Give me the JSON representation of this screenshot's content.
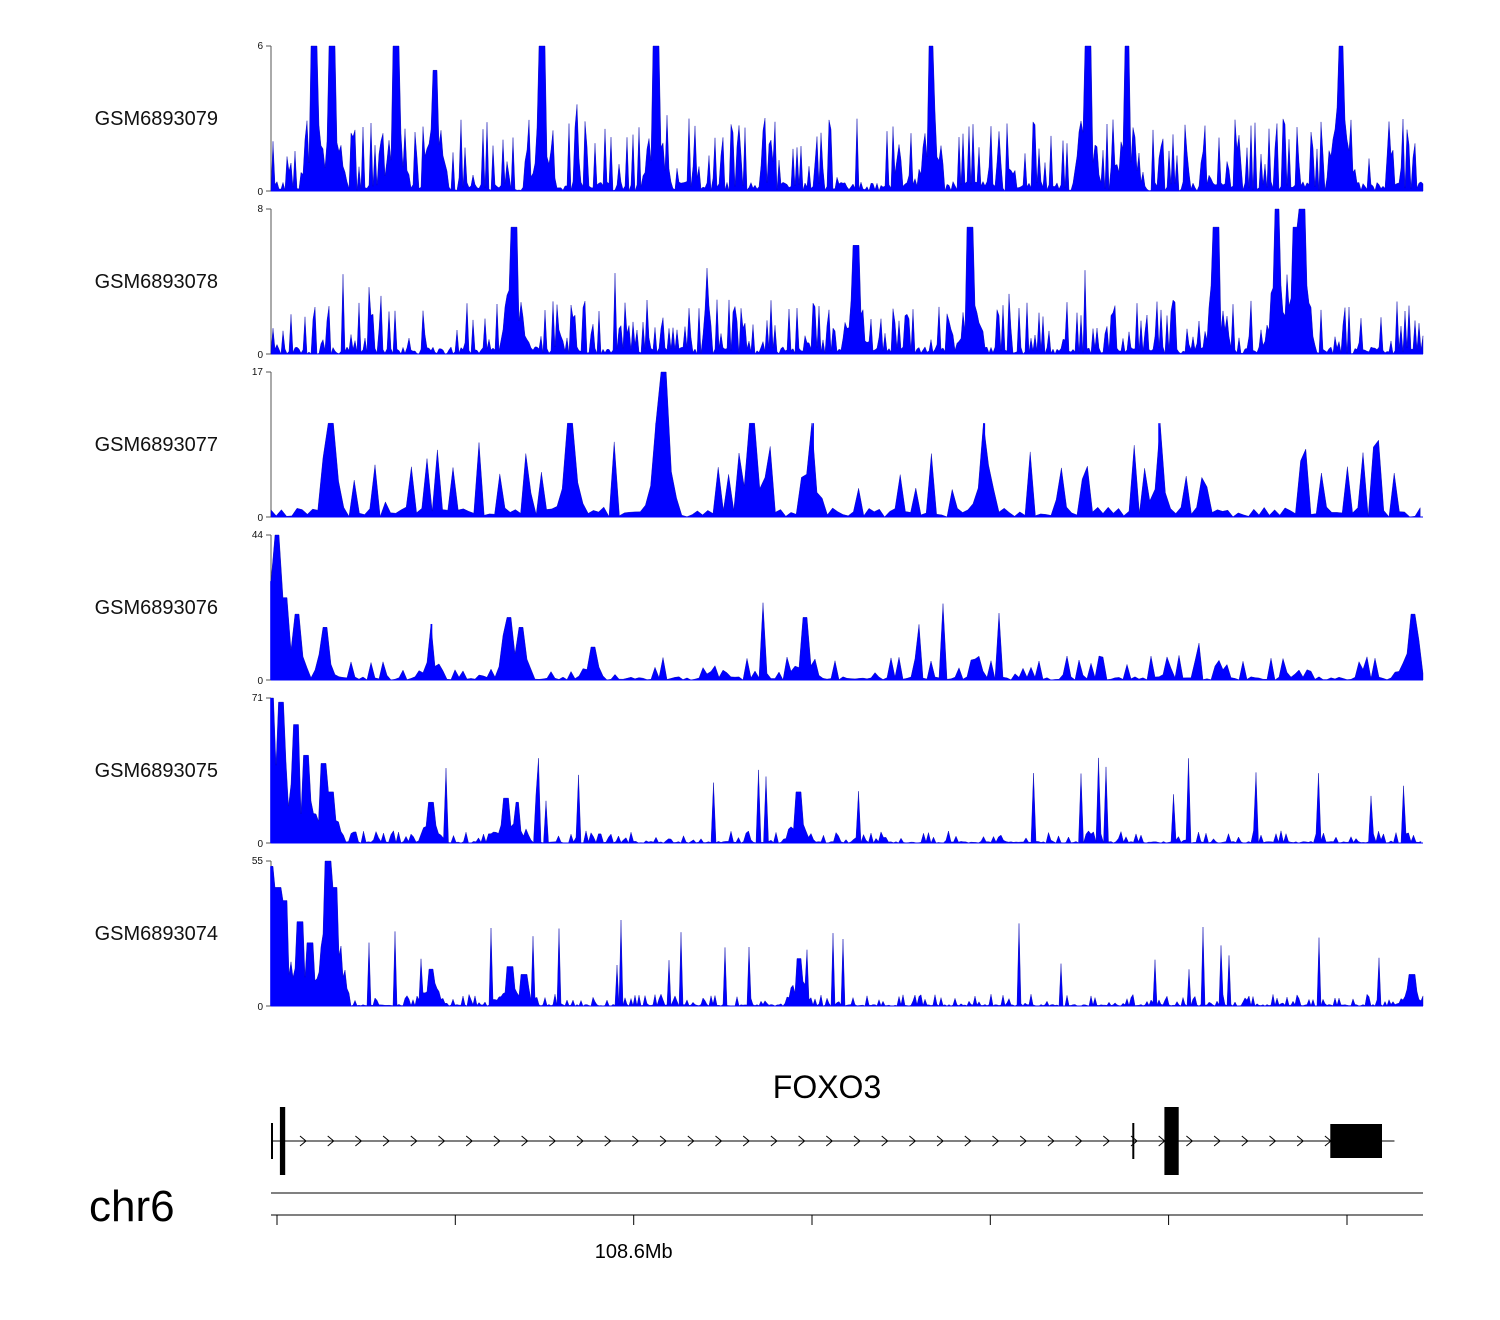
{
  "chart_data": {
    "type": "area",
    "title": "",
    "track_color": "#0000ff",
    "x_range_mb": [
      108.5,
      108.823
    ],
    "x_axis": {
      "ticks_mb": [
        108.5,
        108.55,
        108.6,
        108.65,
        108.7,
        108.75,
        108.8
      ],
      "labeled_tick": {
        "value_mb": 108.6,
        "label": "108.6Mb"
      }
    },
    "chromosome": "chr6",
    "tracks": [
      {
        "name": "GSM6893079",
        "ymax": 6,
        "ymin_label": "0",
        "ymax_label": "6",
        "baseline": 1.0,
        "peak_rate": 0.34,
        "spacing": 2,
        "peaks": [
          [
            108.512,
            6
          ],
          [
            108.517,
            6
          ],
          [
            108.535,
            6
          ],
          [
            108.576,
            6
          ],
          [
            108.608,
            6
          ],
          [
            108.685,
            6
          ],
          [
            108.729,
            6
          ],
          [
            108.74,
            6
          ],
          [
            108.8,
            6
          ],
          [
            108.546,
            5
          ]
        ]
      },
      {
        "name": "GSM6893078",
        "ymax": 8,
        "ymin_label": "0",
        "ymax_label": "8",
        "baseline": 1.0,
        "peak_rate": 0.34,
        "spacing": 2,
        "peaks": [
          [
            108.568,
            7
          ],
          [
            108.696,
            7
          ],
          [
            108.765,
            7
          ],
          [
            108.782,
            8
          ],
          [
            108.789,
            8
          ],
          [
            108.787,
            7
          ],
          [
            108.664,
            6
          ]
        ]
      },
      {
        "name": "GSM6893077",
        "ymax": 17,
        "ymin_label": "0",
        "ymax_label": "17",
        "baseline": 3.0,
        "peak_rate": 0.15,
        "spacing": 5.2,
        "peaks": [
          [
            108.61,
            17
          ],
          [
            108.608,
            11
          ],
          [
            108.635,
            11
          ],
          [
            108.7,
            11
          ],
          [
            108.749,
            11
          ],
          [
            108.652,
            11
          ],
          [
            108.517,
            11
          ],
          [
            108.584,
            11
          ]
        ]
      },
      {
        "name": "GSM6893076",
        "ymax": 44,
        "ymin_label": "0",
        "ymax_label": "44",
        "baseline": 2.5,
        "peak_rate": 0.3,
        "spacing": 4.0,
        "peaks": [
          [
            108.502,
            44
          ],
          [
            108.5,
            30
          ],
          [
            108.504,
            25
          ],
          [
            108.507,
            20
          ],
          [
            108.515,
            16
          ],
          [
            108.545,
            17
          ],
          [
            108.567,
            19
          ],
          [
            108.57,
            16
          ],
          [
            108.59,
            10
          ],
          [
            108.65,
            19
          ],
          [
            108.82,
            20
          ]
        ]
      },
      {
        "name": "GSM6893075",
        "ymax": 71,
        "ymin_label": "0",
        "ymax_label": "71",
        "baseline": 2.0,
        "peak_rate": 0.3,
        "spacing": 2.5,
        "peaks": [
          [
            108.5,
            71
          ],
          [
            108.503,
            69
          ],
          [
            108.507,
            58
          ],
          [
            108.51,
            43
          ],
          [
            108.515,
            39
          ],
          [
            108.517,
            25
          ],
          [
            108.545,
            20
          ],
          [
            108.566,
            22
          ],
          [
            108.569,
            20
          ],
          [
            108.648,
            25
          ]
        ]
      },
      {
        "name": "GSM6893074",
        "ymax": 55,
        "ymin_label": "0",
        "ymax_label": "55",
        "baseline": 1.5,
        "peak_rate": 0.3,
        "spacing": 2.0,
        "peaks": [
          [
            108.5,
            53
          ],
          [
            108.502,
            45
          ],
          [
            108.504,
            40
          ],
          [
            108.508,
            32
          ],
          [
            108.511,
            24
          ],
          [
            108.516,
            55
          ],
          [
            108.518,
            45
          ],
          [
            108.545,
            14
          ],
          [
            108.567,
            15
          ],
          [
            108.571,
            12
          ],
          [
            108.648,
            18
          ],
          [
            108.82,
            12
          ]
        ]
      }
    ],
    "gene": {
      "name": "FOXO3",
      "strand": "+",
      "start_mb": 108.5,
      "end_mb": 108.815,
      "exons_mb": [
        [
          108.5,
          108.5002
        ],
        [
          108.5025,
          108.504
        ],
        [
          108.7415,
          108.7418
        ],
        [
          108.7505,
          108.7545
        ],
        [
          108.797,
          108.8115
        ]
      ]
    }
  }
}
